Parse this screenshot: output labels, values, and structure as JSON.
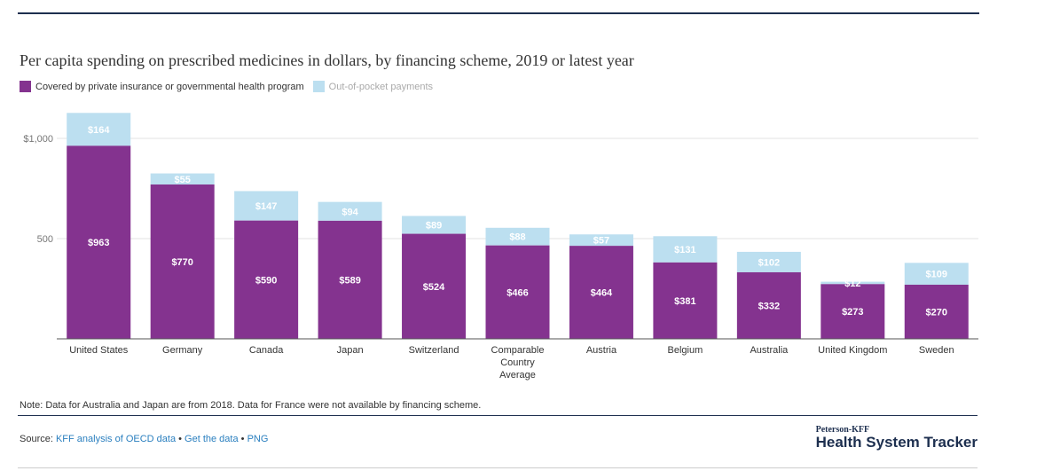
{
  "header": {
    "title": "Per capita spending on prescribed medicines in dollars, by financing scheme, 2019 or latest year"
  },
  "legend": {
    "items": [
      {
        "label": "Covered by private insurance or governmental health program",
        "color": "#84338f"
      },
      {
        "label": "Out-of-pocket payments",
        "color": "#bcdff0"
      }
    ]
  },
  "chart_data": {
    "type": "bar",
    "stacked": true,
    "categories": [
      "United States",
      "Germany",
      "Canada",
      "Japan",
      "Switzerland",
      "Comparable Country Average",
      "Austria",
      "Belgium",
      "Australia",
      "United Kingdom",
      "Sweden"
    ],
    "series": [
      {
        "name": "Covered by private insurance or governmental health program",
        "color": "#84338f",
        "values": [
          963,
          770,
          590,
          589,
          524,
          466,
          464,
          381,
          332,
          273,
          270
        ],
        "labels": [
          "$963",
          "$770",
          "$590",
          "$589",
          "$524",
          "$466",
          "$464",
          "$381",
          "$332",
          "$273",
          "$270"
        ]
      },
      {
        "name": "Out-of-pocket payments",
        "color": "#bcdff0",
        "values": [
          164,
          55,
          147,
          94,
          89,
          88,
          57,
          131,
          102,
          12,
          109
        ],
        "labels": [
          "$164",
          "$55",
          "$147",
          "$94",
          "$89",
          "$88",
          "$57",
          "$131",
          "$102",
          "$12",
          "$109"
        ]
      }
    ],
    "yticks": [
      {
        "value": 500,
        "label": "500"
      },
      {
        "value": 1000,
        "label": "$1,000"
      }
    ],
    "ylim": [
      0,
      1130
    ],
    "grid": true,
    "legend_position": "top-left"
  },
  "footer": {
    "note": "Note: Data for Australia and Japan are from 2018. Data for France were not available by financing scheme.",
    "source_prefix": "Source: ",
    "source_link": "KFF analysis of OECD data",
    "sep1": " • ",
    "data_link": "Get the data",
    "sep2": " • ",
    "png_link": "PNG",
    "brand_small": "Peterson-KFF",
    "brand_big": "Health System Tracker"
  }
}
